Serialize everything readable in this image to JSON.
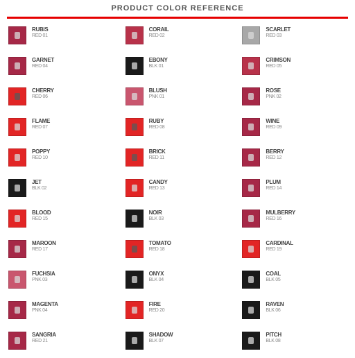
{
  "header": {
    "title": "PRODUCT COLOR REFERENCE"
  },
  "palette": {
    "marker_light": "#d9d9d9",
    "marker_dark": "#5a5a5a",
    "background": "#ffffff",
    "divider_color": "#e60000"
  },
  "grid": {
    "columns": 3,
    "rows": 11,
    "swatch_size": 26,
    "label_fontsize": 8,
    "sublabel_fontsize": 7,
    "cells": [
      {
        "label": "RUBIS",
        "sublabel": "RED 01",
        "color": "#a62847",
        "marker": "light"
      },
      {
        "label": "CORAIL",
        "sublabel": "RED 02",
        "color": "#b8324a",
        "marker": "light"
      },
      {
        "label": "SCARLET",
        "sublabel": "RED 03",
        "color": "#a8a8a8",
        "marker": "light"
      },
      {
        "label": "GARNET",
        "sublabel": "RED 04",
        "color": "#a62847",
        "marker": "light"
      },
      {
        "label": "EBONY",
        "sublabel": "BLK 01",
        "color": "#1a1a1a",
        "marker": "light"
      },
      {
        "label": "CRIMSON",
        "sublabel": "RED 05",
        "color": "#b8324a",
        "marker": "light"
      },
      {
        "label": "CHERRY",
        "sublabel": "RED 06",
        "color": "#e22525",
        "marker": "dark"
      },
      {
        "label": "BLUSH",
        "sublabel": "PNK 01",
        "color": "#c9566e",
        "marker": "light"
      },
      {
        "label": "ROSE",
        "sublabel": "PNK 02",
        "color": "#a62847",
        "marker": "light"
      },
      {
        "label": "FLAME",
        "sublabel": "RED 07",
        "color": "#e22525",
        "marker": "light"
      },
      {
        "label": "RUBY",
        "sublabel": "RED 08",
        "color": "#e22525",
        "marker": "dark"
      },
      {
        "label": "WINE",
        "sublabel": "RED 09",
        "color": "#a62847",
        "marker": "light"
      },
      {
        "label": "POPPY",
        "sublabel": "RED 10",
        "color": "#e22525",
        "marker": "light"
      },
      {
        "label": "BRICK",
        "sublabel": "RED 11",
        "color": "#e22525",
        "marker": "dark"
      },
      {
        "label": "BERRY",
        "sublabel": "RED 12",
        "color": "#a62847",
        "marker": "light"
      },
      {
        "label": "JET",
        "sublabel": "BLK 02",
        "color": "#1a1a1a",
        "marker": "light"
      },
      {
        "label": "CANDY",
        "sublabel": "RED 13",
        "color": "#e22525",
        "marker": "light"
      },
      {
        "label": "PLUM",
        "sublabel": "RED 14",
        "color": "#a62847",
        "marker": "light"
      },
      {
        "label": "BLOOD",
        "sublabel": "RED 15",
        "color": "#e22525",
        "marker": "light"
      },
      {
        "label": "NOIR",
        "sublabel": "BLK 03",
        "color": "#1a1a1a",
        "marker": "light"
      },
      {
        "label": "MULBERRY",
        "sublabel": "RED 16",
        "color": "#a62847",
        "marker": "light"
      },
      {
        "label": "MAROON",
        "sublabel": "RED 17",
        "color": "#a62847",
        "marker": "light"
      },
      {
        "label": "TOMATO",
        "sublabel": "RED 18",
        "color": "#e22525",
        "marker": "dark"
      },
      {
        "label": "CARDINAL",
        "sublabel": "RED 19",
        "color": "#e22525",
        "marker": "light"
      },
      {
        "label": "FUCHSIA",
        "sublabel": "PNK 03",
        "color": "#c9566e",
        "marker": "light"
      },
      {
        "label": "ONYX",
        "sublabel": "BLK 04",
        "color": "#1a1a1a",
        "marker": "light"
      },
      {
        "label": "COAL",
        "sublabel": "BLK 05",
        "color": "#1a1a1a",
        "marker": "light"
      },
      {
        "label": "MAGENTA",
        "sublabel": "PNK 04",
        "color": "#a62847",
        "marker": "light"
      },
      {
        "label": "FIRE",
        "sublabel": "RED 20",
        "color": "#e22525",
        "marker": "light"
      },
      {
        "label": "RAVEN",
        "sublabel": "BLK 06",
        "color": "#1a1a1a",
        "marker": "light"
      },
      {
        "label": "SANGRIA",
        "sublabel": "RED 21",
        "color": "#a62847",
        "marker": "light"
      },
      {
        "label": "SHADOW",
        "sublabel": "BLK 07",
        "color": "#1a1a1a",
        "marker": "light"
      },
      {
        "label": "PITCH",
        "sublabel": "BLK 08",
        "color": "#1a1a1a",
        "marker": "light"
      }
    ]
  }
}
